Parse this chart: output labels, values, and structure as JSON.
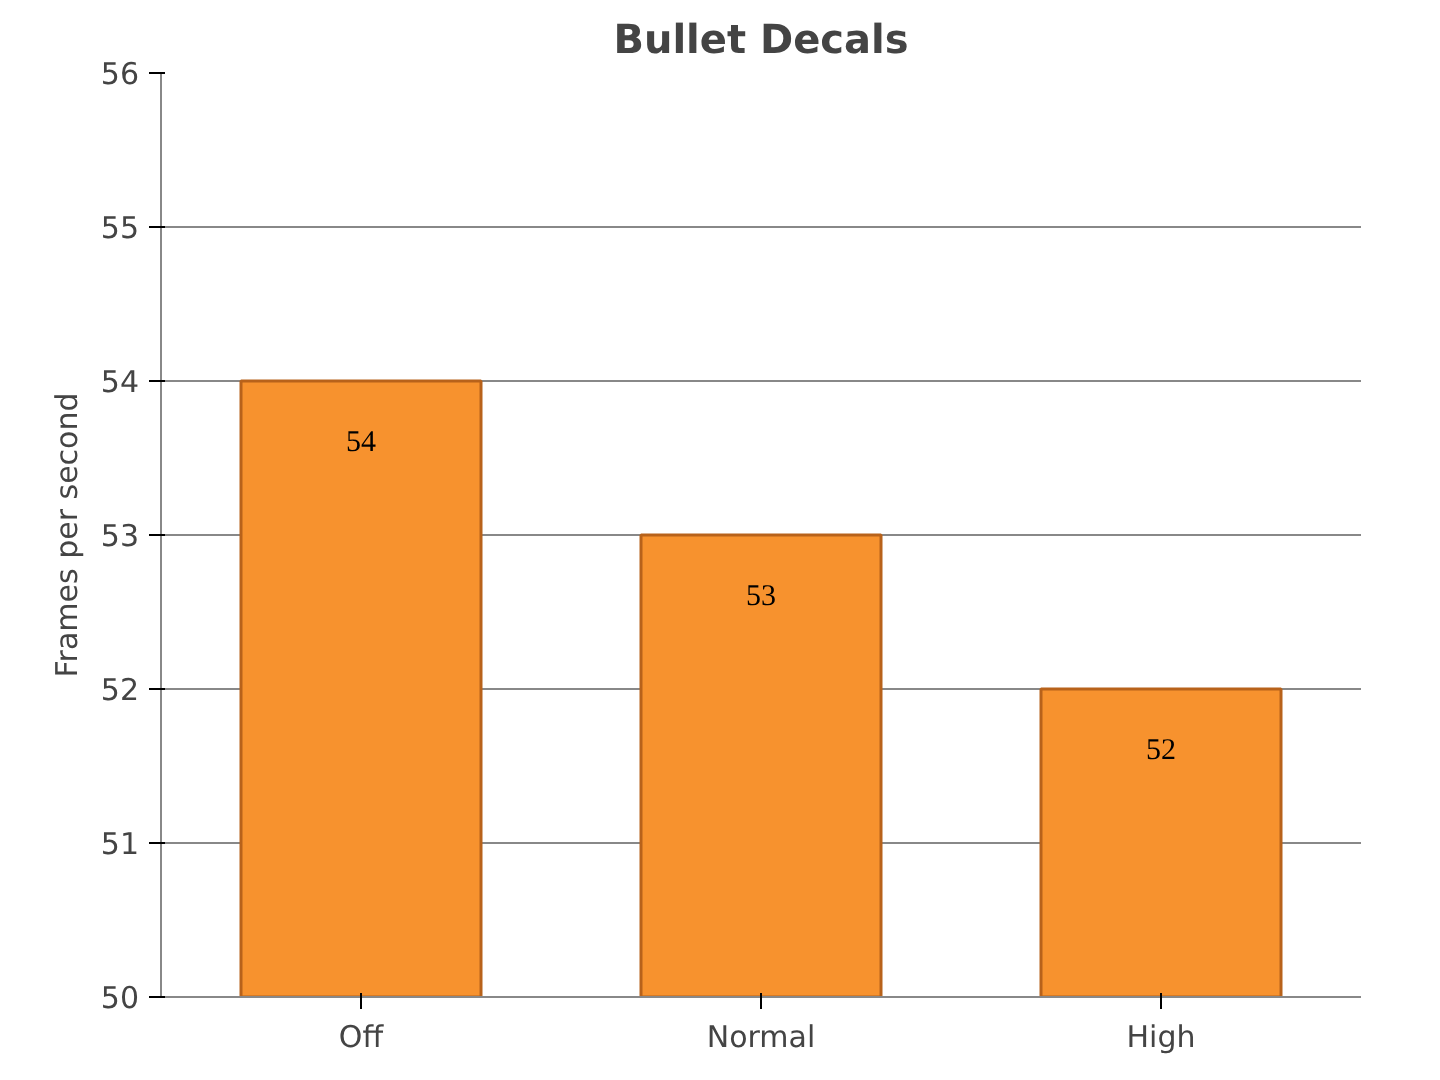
{
  "chart_data": {
    "type": "bar",
    "title": "Bullet Decals",
    "ylabel": "Frames per second",
    "categories": [
      "Off",
      "Normal",
      "High"
    ],
    "values": [
      54,
      53,
      52
    ],
    "color": "#f7922e",
    "ylim": [
      50,
      56
    ],
    "yticks": [
      50,
      51,
      52,
      53,
      54,
      55,
      56
    ],
    "grid": "y",
    "data_labels": true
  }
}
